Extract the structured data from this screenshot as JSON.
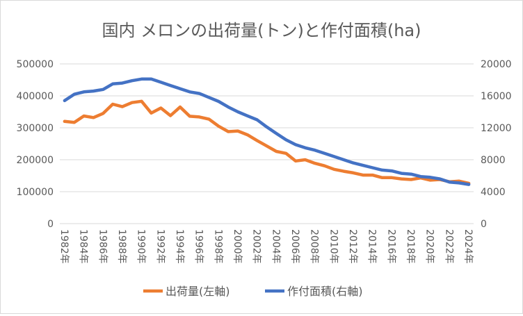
{
  "chart_data": {
    "type": "line",
    "title": "国内 メロンの出荷量(トン)と作付面積(ha)",
    "x": [
      1982,
      1983,
      1984,
      1985,
      1986,
      1987,
      1988,
      1989,
      1990,
      1991,
      1992,
      1993,
      1994,
      1995,
      1996,
      1997,
      1998,
      1999,
      2000,
      2001,
      2002,
      2003,
      2004,
      2005,
      2006,
      2007,
      2008,
      2009,
      2010,
      2011,
      2012,
      2013,
      2014,
      2015,
      2016,
      2017,
      2018,
      2019,
      2020,
      2021,
      2022,
      2023,
      2024
    ],
    "x_tick_labels": [
      "1982年",
      "1984年",
      "1986年",
      "1988年",
      "1990年",
      "1992年",
      "1994年",
      "1996年",
      "1998年",
      "2000年",
      "2002年",
      "2004年",
      "2006年",
      "2008年",
      "2010年",
      "2012年",
      "2014年",
      "2016年",
      "2018年",
      "2020年",
      "2022年",
      "2024年"
    ],
    "y_left": {
      "range": [
        0,
        500000
      ],
      "ticks": [
        "0",
        "100000",
        "200000",
        "300000",
        "400000",
        "500000"
      ]
    },
    "y_right": {
      "range": [
        0,
        20000
      ],
      "ticks": [
        "0",
        "4000",
        "8000",
        "12000",
        "16000",
        "20000"
      ]
    },
    "grid": true,
    "legend_position": "bottom",
    "series": [
      {
        "name": "出荷量(左軸)",
        "axis": "left",
        "color": "#ED7D31",
        "values": [
          320000,
          317000,
          337000,
          332000,
          345000,
          374000,
          366000,
          379000,
          383000,
          346000,
          362000,
          338000,
          365000,
          336000,
          334000,
          327000,
          305000,
          288000,
          290000,
          278000,
          260000,
          243000,
          226000,
          220000,
          196000,
          200000,
          189000,
          181000,
          170000,
          164000,
          159000,
          152000,
          152000,
          144000,
          144000,
          140000,
          138000,
          143000,
          136000,
          138000,
          131000,
          133000,
          126000
        ]
      },
      {
        "name": "作付面積(右軸)",
        "axis": "right",
        "color": "#4472C4",
        "values": [
          15400,
          16200,
          16500,
          16600,
          16800,
          17500,
          17600,
          17900,
          18100,
          18100,
          17700,
          17300,
          16900,
          16500,
          16300,
          15800,
          15300,
          14600,
          14000,
          13500,
          13000,
          12100,
          11300,
          10500,
          9900,
          9500,
          9200,
          8800,
          8400,
          8000,
          7600,
          7300,
          7000,
          6700,
          6600,
          6300,
          6200,
          5900,
          5800,
          5600,
          5200,
          5100,
          4900
        ]
      }
    ]
  }
}
